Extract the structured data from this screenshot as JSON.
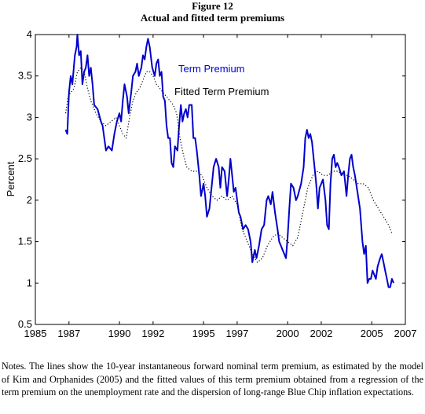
{
  "figure": {
    "number": "Figure 12",
    "title": "Actual and fitted term premiums"
  },
  "notes": "Notes. The lines show the 10-year instantaneous forward nominal term premium, as estimated by the model of Kim and Orphanides (2005) and the fitted values of this term premium obtained from a regression of the term premium on the unemployment rate and the dispersion of long-range Blue Chip inflation expectations.",
  "colors": {
    "actual": "#0000cc",
    "fitted": "#000000",
    "axis": "#000000"
  },
  "chart_data": {
    "type": "line",
    "title": "Actual and fitted term premiums",
    "xlabel": "",
    "ylabel": "Percent",
    "xlim": [
      1985,
      2007
    ],
    "ylim": [
      0.5,
      4
    ],
    "x_ticks": [
      1985,
      1987,
      1990,
      1992,
      1995,
      1997,
      2000,
      2002,
      2005,
      2007
    ],
    "y_ticks": [
      0.5,
      1,
      1.5,
      2,
      2.5,
      3,
      3.5,
      4
    ],
    "y_tick_labels": [
      "0.5",
      "1",
      "1.5",
      "2",
      "2.5",
      "3",
      "3.5",
      "4"
    ],
    "grid": false,
    "series": [
      {
        "name": "Term Premium",
        "style": "solid",
        "color": "#0000cc",
        "points": [
          [
            1986.8,
            2.85
          ],
          [
            1986.9,
            2.8
          ],
          [
            1987.0,
            3.3
          ],
          [
            1987.1,
            3.5
          ],
          [
            1987.2,
            3.4
          ],
          [
            1987.35,
            3.75
          ],
          [
            1987.45,
            3.85
          ],
          [
            1987.5,
            4.0
          ],
          [
            1987.6,
            3.75
          ],
          [
            1987.7,
            3.8
          ],
          [
            1987.8,
            3.4
          ],
          [
            1987.9,
            3.55
          ],
          [
            1988.0,
            3.6
          ],
          [
            1988.1,
            3.75
          ],
          [
            1988.2,
            3.5
          ],
          [
            1988.3,
            3.6
          ],
          [
            1988.4,
            3.4
          ],
          [
            1988.5,
            3.15
          ],
          [
            1988.7,
            3.1
          ],
          [
            1988.9,
            2.95
          ],
          [
            1989.0,
            2.9
          ],
          [
            1989.2,
            2.6
          ],
          [
            1989.35,
            2.65
          ],
          [
            1989.55,
            2.6
          ],
          [
            1989.7,
            2.8
          ],
          [
            1989.85,
            2.95
          ],
          [
            1990.0,
            3.05
          ],
          [
            1990.1,
            2.95
          ],
          [
            1990.2,
            3.2
          ],
          [
            1990.3,
            3.4
          ],
          [
            1990.45,
            3.25
          ],
          [
            1990.55,
            3.05
          ],
          [
            1990.7,
            3.3
          ],
          [
            1990.8,
            3.5
          ],
          [
            1990.95,
            3.55
          ],
          [
            1991.05,
            3.65
          ],
          [
            1991.15,
            3.5
          ],
          [
            1991.3,
            3.6
          ],
          [
            1991.4,
            3.75
          ],
          [
            1991.5,
            3.7
          ],
          [
            1991.6,
            3.85
          ],
          [
            1991.7,
            3.95
          ],
          [
            1991.8,
            3.85
          ],
          [
            1991.95,
            3.6
          ],
          [
            1992.1,
            3.5
          ],
          [
            1992.2,
            3.65
          ],
          [
            1992.3,
            3.7
          ],
          [
            1992.4,
            3.5
          ],
          [
            1992.5,
            3.55
          ],
          [
            1992.6,
            3.25
          ],
          [
            1992.7,
            3.2
          ],
          [
            1992.8,
            2.9
          ],
          [
            1992.9,
            2.75
          ],
          [
            1993.0,
            2.75
          ],
          [
            1993.1,
            2.45
          ],
          [
            1993.2,
            2.4
          ],
          [
            1993.3,
            2.65
          ],
          [
            1993.45,
            2.6
          ],
          [
            1993.55,
            2.9
          ],
          [
            1993.65,
            3.15
          ],
          [
            1993.75,
            2.95
          ],
          [
            1993.85,
            3.05
          ],
          [
            1993.95,
            3.1
          ],
          [
            1994.05,
            3.0
          ],
          [
            1994.15,
            3.15
          ],
          [
            1994.3,
            3.15
          ],
          [
            1994.4,
            2.75
          ],
          [
            1994.5,
            2.75
          ],
          [
            1994.6,
            2.6
          ],
          [
            1994.75,
            2.3
          ],
          [
            1994.85,
            2.05
          ],
          [
            1995.0,
            2.2
          ],
          [
            1995.1,
            2.05
          ],
          [
            1995.2,
            1.8
          ],
          [
            1995.35,
            1.9
          ],
          [
            1995.5,
            2.2
          ],
          [
            1995.6,
            2.4
          ],
          [
            1995.75,
            2.5
          ],
          [
            1995.9,
            2.4
          ],
          [
            1996.0,
            2.15
          ],
          [
            1996.1,
            2.4
          ],
          [
            1996.25,
            2.35
          ],
          [
            1996.4,
            2.05
          ],
          [
            1996.5,
            2.25
          ],
          [
            1996.6,
            2.5
          ],
          [
            1996.7,
            2.3
          ],
          [
            1996.8,
            2.1
          ],
          [
            1996.9,
            2.15
          ],
          [
            1997.0,
            2.0
          ],
          [
            1997.1,
            1.85
          ],
          [
            1997.2,
            1.8
          ],
          [
            1997.35,
            1.65
          ],
          [
            1997.5,
            1.7
          ],
          [
            1997.65,
            1.65
          ],
          [
            1997.8,
            1.5
          ],
          [
            1997.9,
            1.25
          ],
          [
            1998.05,
            1.4
          ],
          [
            1998.15,
            1.3
          ],
          [
            1998.3,
            1.45
          ],
          [
            1998.45,
            1.65
          ],
          [
            1998.6,
            1.7
          ],
          [
            1998.75,
            2.0
          ],
          [
            1998.85,
            2.05
          ],
          [
            1999.0,
            1.95
          ],
          [
            1999.1,
            2.1
          ],
          [
            1999.25,
            1.85
          ],
          [
            1999.4,
            1.65
          ],
          [
            1999.5,
            1.5
          ],
          [
            1999.6,
            1.45
          ],
          [
            1999.7,
            1.4
          ],
          [
            1999.8,
            1.35
          ],
          [
            1999.9,
            1.3
          ],
          [
            2000.0,
            1.55
          ],
          [
            2000.1,
            1.9
          ],
          [
            2000.2,
            2.2
          ],
          [
            2000.35,
            2.15
          ],
          [
            2000.5,
            2.0
          ],
          [
            2000.6,
            2.05
          ],
          [
            2000.8,
            2.2
          ],
          [
            2000.95,
            2.4
          ],
          [
            2001.05,
            2.75
          ],
          [
            2001.15,
            2.85
          ],
          [
            2001.25,
            2.75
          ],
          [
            2001.35,
            2.8
          ],
          [
            2001.45,
            2.7
          ],
          [
            2001.55,
            2.5
          ],
          [
            2001.7,
            2.2
          ],
          [
            2001.8,
            1.9
          ],
          [
            2001.9,
            2.15
          ],
          [
            2002.0,
            2.2
          ],
          [
            2002.1,
            2.25
          ],
          [
            2002.25,
            2.0
          ],
          [
            2002.35,
            1.7
          ],
          [
            2002.45,
            1.65
          ],
          [
            2002.55,
            2.2
          ],
          [
            2002.65,
            2.5
          ],
          [
            2002.75,
            2.55
          ],
          [
            2002.85,
            2.4
          ],
          [
            2002.95,
            2.45
          ],
          [
            2003.05,
            2.4
          ],
          [
            2003.2,
            2.3
          ],
          [
            2003.35,
            2.35
          ],
          [
            2003.5,
            2.05
          ],
          [
            2003.6,
            2.3
          ],
          [
            2003.7,
            2.5
          ],
          [
            2003.8,
            2.55
          ],
          [
            2003.9,
            2.4
          ],
          [
            2004.0,
            2.3
          ],
          [
            2004.15,
            2.1
          ],
          [
            2004.3,
            1.9
          ],
          [
            2004.45,
            1.5
          ],
          [
            2004.55,
            1.35
          ],
          [
            2004.65,
            1.45
          ],
          [
            2004.75,
            1.0
          ],
          [
            2004.85,
            1.05
          ],
          [
            2004.95,
            1.05
          ],
          [
            2005.05,
            1.15
          ],
          [
            2005.15,
            1.1
          ],
          [
            2005.25,
            1.05
          ],
          [
            2005.35,
            1.2
          ],
          [
            2005.5,
            1.3
          ],
          [
            2005.6,
            1.35
          ],
          [
            2005.7,
            1.25
          ],
          [
            2005.8,
            1.15
          ],
          [
            2005.9,
            1.05
          ],
          [
            2006.0,
            0.95
          ],
          [
            2006.1,
            0.95
          ],
          [
            2006.2,
            1.05
          ],
          [
            2006.3,
            1.0
          ]
        ]
      },
      {
        "name": "Fitted Term Premium",
        "style": "dotted",
        "color": "#000000",
        "points": [
          [
            1986.8,
            3.05
          ],
          [
            1986.95,
            3.25
          ],
          [
            1987.1,
            3.3
          ],
          [
            1987.3,
            3.35
          ],
          [
            1987.5,
            3.55
          ],
          [
            1987.7,
            3.6
          ],
          [
            1987.9,
            3.55
          ],
          [
            1988.1,
            3.35
          ],
          [
            1988.3,
            3.2
          ],
          [
            1988.6,
            3.05
          ],
          [
            1988.9,
            2.95
          ],
          [
            1989.2,
            2.9
          ],
          [
            1989.5,
            2.95
          ],
          [
            1989.8,
            3.0
          ],
          [
            1990.0,
            2.9
          ],
          [
            1990.2,
            2.8
          ],
          [
            1990.4,
            2.75
          ],
          [
            1990.6,
            3.0
          ],
          [
            1990.8,
            3.2
          ],
          [
            1991.0,
            3.3
          ],
          [
            1991.2,
            3.35
          ],
          [
            1991.4,
            3.45
          ],
          [
            1991.6,
            3.55
          ],
          [
            1991.8,
            3.55
          ],
          [
            1992.0,
            3.5
          ],
          [
            1992.2,
            3.4
          ],
          [
            1992.4,
            3.35
          ],
          [
            1992.6,
            3.3
          ],
          [
            1992.8,
            3.25
          ],
          [
            1993.0,
            3.2
          ],
          [
            1993.2,
            3.15
          ],
          [
            1993.4,
            3.05
          ],
          [
            1993.6,
            2.75
          ],
          [
            1993.8,
            2.55
          ],
          [
            1994.0,
            2.4
          ],
          [
            1994.3,
            2.35
          ],
          [
            1994.6,
            2.35
          ],
          [
            1994.9,
            2.3
          ],
          [
            1995.2,
            2.15
          ],
          [
            1995.5,
            2.05
          ],
          [
            1995.8,
            2.0
          ],
          [
            1996.1,
            2.05
          ],
          [
            1996.4,
            2.0
          ],
          [
            1996.7,
            2.05
          ],
          [
            1997.0,
            1.95
          ],
          [
            1997.3,
            1.65
          ],
          [
            1997.6,
            1.5
          ],
          [
            1997.9,
            1.35
          ],
          [
            1998.2,
            1.25
          ],
          [
            1998.5,
            1.3
          ],
          [
            1998.8,
            1.45
          ],
          [
            1999.1,
            1.55
          ],
          [
            1999.4,
            1.6
          ],
          [
            1999.7,
            1.55
          ],
          [
            2000.0,
            1.5
          ],
          [
            2000.3,
            1.45
          ],
          [
            2000.6,
            1.55
          ],
          [
            2000.9,
            1.85
          ],
          [
            2001.2,
            2.15
          ],
          [
            2001.5,
            2.3
          ],
          [
            2001.8,
            2.35
          ],
          [
            2002.1,
            2.3
          ],
          [
            2002.4,
            2.3
          ],
          [
            2002.7,
            2.35
          ],
          [
            2003.0,
            2.35
          ],
          [
            2003.3,
            2.3
          ],
          [
            2003.6,
            2.3
          ],
          [
            2003.9,
            2.25
          ],
          [
            2004.2,
            2.2
          ],
          [
            2004.5,
            2.2
          ],
          [
            2004.8,
            2.15
          ],
          [
            2005.1,
            2.0
          ],
          [
            2005.4,
            1.9
          ],
          [
            2005.7,
            1.8
          ],
          [
            2006.0,
            1.7
          ],
          [
            2006.2,
            1.6
          ]
        ]
      }
    ],
    "legend": {
      "placement": "inside-top-center",
      "entries": [
        "Term Premium",
        "Fitted Term Premium"
      ]
    }
  }
}
